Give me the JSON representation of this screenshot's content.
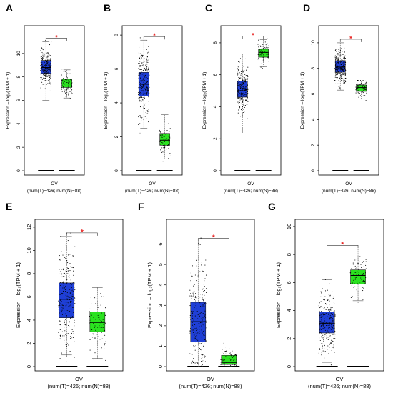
{
  "colors": {
    "tumor": "#1f3fd6",
    "normal": "#2ae21f",
    "significance": "#e8211f",
    "points": "#000000"
  },
  "chart_data": [
    {
      "panel": "A",
      "type": "boxplot",
      "ylabel": "Expression – log₂(TPM + 1)",
      "xlabel": "OV",
      "sublabel": "(num(T)=426; num(N)=88)",
      "ylim": [
        0,
        12
      ],
      "yticks": [
        0,
        2,
        4,
        6,
        8,
        10
      ],
      "significance": "*",
      "series": [
        {
          "group": "T",
          "count": 426,
          "min": 6.0,
          "q1": 8.3,
          "median": 8.8,
          "q3": 9.4,
          "max": 11.0
        },
        {
          "group": "N",
          "count": 88,
          "min": 6.2,
          "q1": 7.1,
          "median": 7.4,
          "q3": 7.8,
          "max": 8.6
        }
      ]
    },
    {
      "panel": "B",
      "type": "boxplot",
      "ylabel": "Expression – log₂(TPM + 1)",
      "xlabel": "OV",
      "sublabel": "(num(T)=426; num(N)=88)",
      "ylim": [
        0,
        8.3
      ],
      "yticks": [
        0,
        2,
        4,
        6,
        8
      ],
      "significance": "*",
      "series": [
        {
          "group": "T",
          "count": 426,
          "min": 2.5,
          "q1": 4.4,
          "median": 5.1,
          "q3": 5.8,
          "max": 7.7
        },
        {
          "group": "N",
          "count": 88,
          "min": 0.7,
          "q1": 1.5,
          "median": 1.8,
          "q3": 2.2,
          "max": 3.3
        }
      ]
    },
    {
      "panel": "C",
      "type": "boxplot",
      "ylabel": "Expression – log₂(TPM + 1)",
      "xlabel": "OV",
      "sublabel": "(num(T)=426; num(N)=88)",
      "ylim": [
        0,
        8.8
      ],
      "yticks": [
        0,
        2,
        4,
        6,
        8
      ],
      "significance": "*",
      "series": [
        {
          "group": "T",
          "count": 426,
          "min": 2.3,
          "q1": 4.6,
          "median": 5.0,
          "q3": 5.6,
          "max": 7.3
        },
        {
          "group": "N",
          "count": 88,
          "min": 6.5,
          "q1": 7.1,
          "median": 7.4,
          "q3": 7.6,
          "max": 8.2
        }
      ]
    },
    {
      "panel": "D",
      "type": "boxplot",
      "ylabel": "Expression – log₂(TPM + 1)",
      "xlabel": "OV",
      "sublabel": "(num(T)=426; num(N)=88)",
      "ylim": [
        0,
        11
      ],
      "yticks": [
        0,
        2,
        4,
        6,
        8,
        10
      ],
      "significance": "*",
      "series": [
        {
          "group": "T",
          "count": 426,
          "min": 6.3,
          "q1": 7.7,
          "median": 8.1,
          "q3": 8.6,
          "max": 10.0
        },
        {
          "group": "N",
          "count": 88,
          "min": 5.6,
          "q1": 6.2,
          "median": 6.5,
          "q3": 6.7,
          "max": 7.0
        }
      ]
    },
    {
      "panel": "E",
      "type": "boxplot",
      "ylabel": "Expression – log₂(TPM + 1)",
      "xlabel": "OV",
      "sublabel": "(num(T)=426; num(N)=88)",
      "ylim": [
        0,
        12.3
      ],
      "yticks": [
        0,
        2,
        4,
        6,
        8,
        10,
        12
      ],
      "significance": "*",
      "series": [
        {
          "group": "T",
          "count": 426,
          "min": 1.0,
          "q1": 4.2,
          "median": 5.8,
          "q3": 7.2,
          "max": 11.2
        },
        {
          "group": "N",
          "count": 88,
          "min": 0.7,
          "q1": 3.0,
          "median": 3.8,
          "q3": 4.7,
          "max": 6.8
        }
      ]
    },
    {
      "panel": "F",
      "type": "boxplot",
      "ylabel": "Expression – log₂(TPM + 1)",
      "xlabel": "OV",
      "sublabel": "(num(T)=426; num(N)=88)",
      "ylim": [
        0,
        7.0
      ],
      "yticks": [
        0,
        1,
        2,
        3,
        4,
        5,
        6
      ],
      "significance": "*",
      "series": [
        {
          "group": "T",
          "count": 426,
          "min": 0.0,
          "q1": 1.2,
          "median": 2.2,
          "q3": 3.15,
          "max": 6.1
        },
        {
          "group": "N",
          "count": 88,
          "min": 0.0,
          "q1": 0.1,
          "median": 0.2,
          "q3": 0.55,
          "max": 1.1
        }
      ]
    },
    {
      "panel": "G",
      "type": "boxplot",
      "ylabel": "Expression – log₂(TPM + 1)",
      "xlabel": "OV",
      "sublabel": "(num(T)=426; num(N)=88)",
      "ylim": [
        0,
        10.2
      ],
      "yticks": [
        0,
        2,
        4,
        6,
        8,
        10
      ],
      "significance": "*",
      "series": [
        {
          "group": "T",
          "count": 426,
          "min": 0.3,
          "q1": 2.4,
          "median": 3.1,
          "q3": 3.9,
          "max": 6.2
        },
        {
          "group": "N",
          "count": 88,
          "min": 4.7,
          "q1": 5.9,
          "median": 6.5,
          "q3": 6.9,
          "max": 8.4
        }
      ]
    }
  ]
}
